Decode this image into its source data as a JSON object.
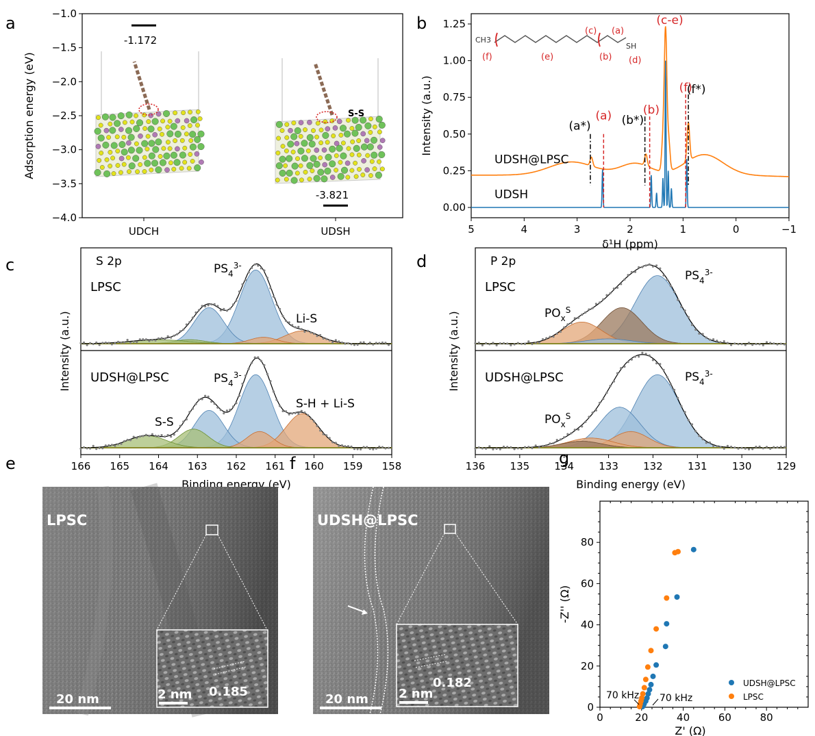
{
  "panel_letters": [
    "a",
    "b",
    "c",
    "d",
    "e",
    "f",
    "g"
  ],
  "colors": {
    "blue": "#1f77b4",
    "orange": "#ff7f0e",
    "red": "#d62728",
    "fill_blue": "#9dbfdb",
    "fill_orange": "#e3a778",
    "fill_green": "#a7bf77",
    "fill_brown": "#9b7a5e",
    "baseline": "#8a8a2a",
    "dots": "#808080"
  },
  "chart_data": [
    {
      "id": "a",
      "type": "scatter",
      "ylabel": "Adsorption energy (eV)",
      "categories": [
        "UDCH",
        "UDSH"
      ],
      "values": [
        -1.172,
        -3.821
      ],
      "value_labels": [
        "-1.172",
        "-3.821"
      ],
      "ylim": [
        -4.0,
        -1.0
      ],
      "yticks": [
        "−1.0",
        "−1.5",
        "−2.0",
        "−2.5",
        "−3.0",
        "−3.5",
        "−4.0"
      ],
      "annotations": [
        "S-S"
      ]
    },
    {
      "id": "b",
      "type": "line",
      "xlabel": "δ¹H (ppm)",
      "ylabel": "Intensity (a.u.)",
      "xlim": [
        5,
        -1
      ],
      "ylim": [
        -0.07,
        1.32
      ],
      "xticks": [
        "5",
        "4",
        "3",
        "2",
        "1",
        "0",
        "−1"
      ],
      "yticks": [
        "0.00",
        "0.25",
        "0.50",
        "0.75",
        "1.00",
        "1.25"
      ],
      "series": [
        {
          "name": "UDSH@LPSC",
          "color": "#ff7f0e",
          "peaks": [
            [
              2.73,
              0.06
            ],
            [
              1.7,
              0.08
            ],
            [
              1.38,
              0.2
            ],
            [
              1.33,
              0.95
            ],
            [
              1.27,
              0.2
            ],
            [
              0.9,
              0.26
            ]
          ]
        },
        {
          "name": "UDSH",
          "color": "#1f77b4",
          "peaks": [
            [
              2.52,
              0.26
            ],
            [
              1.6,
              0.22
            ],
            [
              1.5,
              0.1
            ],
            [
              1.38,
              0.2
            ],
            [
              1.33,
              1.0
            ],
            [
              1.28,
              0.25
            ],
            [
              1.22,
              0.13
            ],
            [
              0.93,
              0.33
            ]
          ]
        }
      ],
      "marker_labels": [
        "(a)",
        "(b)",
        "(f)",
        "(c-e)"
      ],
      "star_labels": [
        "(a*)",
        "(b*)",
        "(f*)"
      ],
      "structure_labels": [
        "CH3",
        "SH",
        "(c)",
        "(a)",
        "(f)",
        "(e)",
        "(b)",
        "(d)"
      ]
    },
    {
      "id": "c",
      "type": "area",
      "title": "S 2p",
      "xlabel": "Binding energy (eV)",
      "ylabel": "Intensity (a.u.)",
      "xlim": [
        166,
        158
      ],
      "xticks": [
        "166",
        "165",
        "164",
        "163",
        "162",
        "161",
        "160",
        "159",
        "158"
      ],
      "subpanels": [
        {
          "name": "LPSC",
          "labels": [
            "PS43-",
            "Li-S"
          ],
          "components": [
            [
              161.5,
              0.92,
              0.42,
              "blue"
            ],
            [
              162.7,
              0.45,
              0.38,
              "blue"
            ],
            [
              160.3,
              0.16,
              0.45,
              "orange"
            ],
            [
              161.3,
              0.08,
              0.35,
              "orange"
            ],
            [
              163.2,
              0.05,
              0.4,
              "green"
            ],
            [
              164.0,
              0.05,
              0.7,
              "green"
            ]
          ]
        },
        {
          "name": "UDSH@LPSC",
          "labels": [
            "PS43-",
            "S-S",
            "S-H + Li-S"
          ],
          "components": [
            [
              161.5,
              0.9,
              0.42,
              "blue"
            ],
            [
              162.7,
              0.46,
              0.38,
              "blue"
            ],
            [
              160.3,
              0.42,
              0.42,
              "orange"
            ],
            [
              161.4,
              0.2,
              0.33,
              "orange"
            ],
            [
              163.1,
              0.23,
              0.38,
              "green"
            ],
            [
              164.3,
              0.15,
              0.5,
              "green"
            ]
          ]
        }
      ]
    },
    {
      "id": "d",
      "type": "area",
      "title": "P 2p",
      "xlabel": "Binding energy (eV)",
      "ylabel": "Intensity (a.u.)",
      "xlim": [
        136,
        129
      ],
      "xticks": [
        "136",
        "135",
        "134",
        "133",
        "132",
        "131",
        "130",
        "129"
      ],
      "subpanels": [
        {
          "name": "LPSC",
          "labels": [
            "PS43-",
            "POxSy"
          ],
          "components": [
            [
              131.9,
              0.85,
              0.5,
              "blue"
            ],
            [
              132.7,
              0.45,
              0.45,
              "brown"
            ],
            [
              133.6,
              0.27,
              0.45,
              "orange"
            ],
            [
              133.0,
              0.06,
              0.5,
              "blue"
            ]
          ]
        },
        {
          "name": "UDSH@LPSC",
          "labels": [
            "PS43-",
            "POxSy"
          ],
          "components": [
            [
              131.9,
              0.9,
              0.5,
              "blue"
            ],
            [
              132.75,
              0.5,
              0.45,
              "blue"
            ],
            [
              132.5,
              0.2,
              0.4,
              "orange"
            ],
            [
              133.4,
              0.12,
              0.5,
              "orange"
            ],
            [
              133.6,
              0.08,
              0.45,
              "brown"
            ]
          ]
        }
      ]
    },
    {
      "id": "g",
      "type": "scatter",
      "xlabel": "Z' (Ω)",
      "ylabel": "-Z'' (Ω)",
      "xlim": [
        0,
        100
      ],
      "ylim": [
        0,
        100
      ],
      "xticks": [
        "0",
        "20",
        "40",
        "60",
        "80"
      ],
      "yticks": [
        "0",
        "20",
        "40",
        "60",
        "80"
      ],
      "annotations": [
        "70 kHz",
        "70 kHz"
      ],
      "series": [
        {
          "name": "UDSH@LPSC",
          "color": "#1f77b4",
          "x": [
            20.5,
            21.2,
            22,
            22.6,
            23.2,
            23.8,
            24.5,
            25.5,
            27,
            31.5,
            32,
            37,
            45
          ],
          "y": [
            0.3,
            1.5,
            3,
            4.5,
            6.5,
            8.5,
            11,
            15,
            20.5,
            29.5,
            40.5,
            53.5,
            76.5
          ]
        },
        {
          "name": "LPSC",
          "color": "#ff7f0e",
          "x": [
            19,
            19.3,
            19.7,
            20.1,
            20.6,
            21.3,
            22,
            23,
            24.5,
            27,
            32,
            36,
            37.5
          ],
          "y": [
            0.3,
            1.5,
            3,
            4.5,
            6.5,
            9.5,
            13.5,
            19.5,
            27.5,
            38,
            53,
            75,
            75.5
          ]
        }
      ]
    },
    {
      "id": "e",
      "type": "table",
      "label": "LPSC",
      "scale_bar": "20 nm",
      "inset_scale_bar": "2 nm",
      "d_spacing": "0.185"
    },
    {
      "id": "f",
      "type": "table",
      "label": "UDSH@LPSC",
      "scale_bar": "20 nm",
      "inset_scale_bar": "2 nm",
      "d_spacing": "0.182"
    }
  ]
}
